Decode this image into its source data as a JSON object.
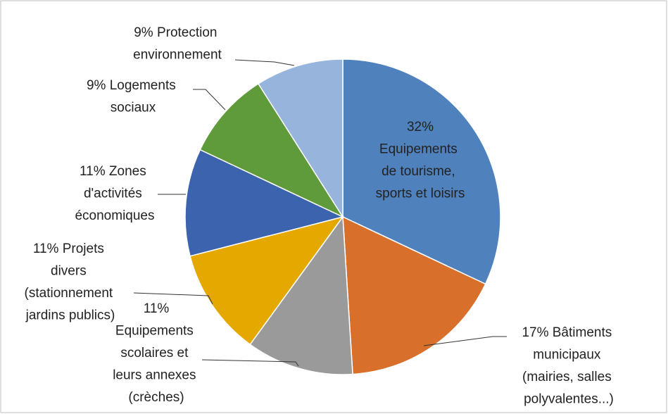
{
  "chart_data": {
    "type": "pie",
    "categories": [
      "Equipements de tourisme, sports et loisirs",
      "Bâtiments municipaux (mairies, salles polyvalentes...)",
      "Equipements scolaires et leurs annexes (crèches)",
      "Projets divers (stationnement jardins publics)",
      "Zones d'activités économiques",
      "Logements sociaux",
      "Protection environnement"
    ],
    "values": [
      32,
      17,
      11,
      11,
      11,
      9,
      9
    ],
    "value_labels": [
      "32%",
      "17%",
      "11%",
      "11%",
      "11%",
      "9%",
      "9%"
    ],
    "colors": [
      "#4f81bd",
      "#d8702c",
      "#9a9a9a",
      "#e5a800",
      "#3b63ae",
      "#5f9a3b",
      "#97b5dc"
    ]
  }
}
